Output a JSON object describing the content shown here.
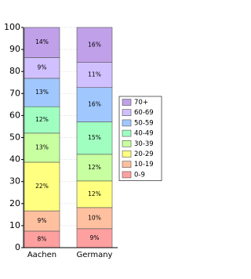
{
  "chart_data": {
    "type": "bar",
    "stacked": true,
    "categories": [
      "Aachen",
      "Germany"
    ],
    "series": [
      {
        "name": "0-9",
        "color": "#ffa0a0",
        "values": [
          7.5,
          8.6
        ],
        "value_labels": [
          "8%",
          "9%"
        ]
      },
      {
        "name": "10-19",
        "color": "#ffc0a0",
        "values": [
          9.2,
          9.6
        ],
        "value_labels": [
          "9%",
          "10%"
        ]
      },
      {
        "name": "20-29",
        "color": "#ffff80",
        "values": [
          22.1,
          12.1
        ],
        "value_labels": [
          "22%",
          "12%"
        ]
      },
      {
        "name": "30-39",
        "color": "#c8ffa0",
        "values": [
          13.2,
          12.1
        ],
        "value_labels": [
          "13%",
          "12%"
        ]
      },
      {
        "name": "40-49",
        "color": "#a0ffc0",
        "values": [
          12.0,
          14.7
        ],
        "value_labels": [
          "12%",
          "15%"
        ]
      },
      {
        "name": "50-59",
        "color": "#a0c8ff",
        "values": [
          12.9,
          15.6
        ],
        "value_labels": [
          "13%",
          "16%"
        ]
      },
      {
        "name": "60-69",
        "color": "#d0c0ff",
        "values": [
          9.4,
          11.4
        ],
        "value_labels": [
          "9%",
          "11%"
        ]
      },
      {
        "name": "70+",
        "color": "#c0a0e8",
        "values": [
          13.7,
          15.9
        ],
        "value_labels": [
          "14%",
          "16%"
        ]
      }
    ],
    "ylim": [
      0,
      100
    ],
    "yticks": [
      0,
      10,
      20,
      30,
      40,
      50,
      60,
      70,
      80,
      90,
      100
    ],
    "grid": true,
    "legend": "right"
  }
}
